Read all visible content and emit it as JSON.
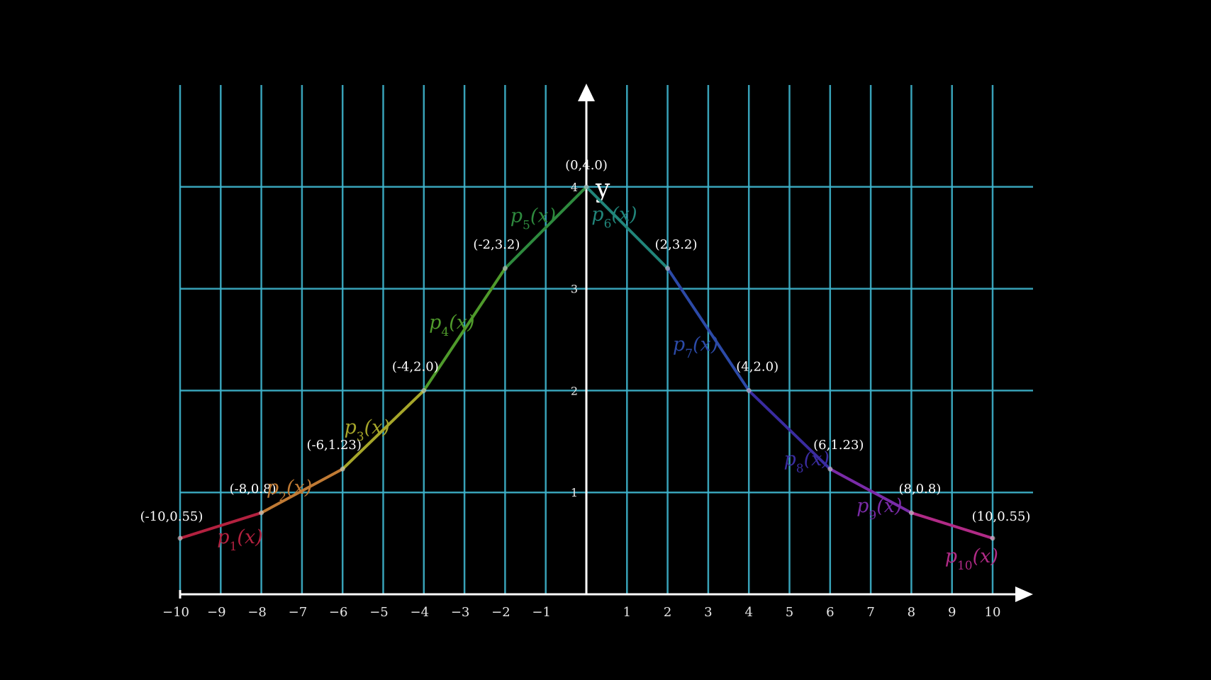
{
  "chart_data": {
    "type": "line",
    "title": "",
    "xlabel": "",
    "ylabel": "y",
    "xlim": [
      -10,
      10
    ],
    "ylim": [
      0,
      4
    ],
    "x_ticks": [
      "−10",
      "−9",
      "−8",
      "−7",
      "−6",
      "−5",
      "−4",
      "−3",
      "−2",
      "−1",
      "1",
      "2",
      "3",
      "4",
      "5",
      "6",
      "7",
      "8",
      "9",
      "10"
    ],
    "y_ticks": [
      "1",
      "2",
      "3",
      "4"
    ],
    "grid": true,
    "points": [
      {
        "x": -10,
        "y": 0.55,
        "label": "(-10,0.55)"
      },
      {
        "x": -8,
        "y": 0.8,
        "label": "(-8,0.8)"
      },
      {
        "x": -6,
        "y": 1.23,
        "label": "(-6,1.23)"
      },
      {
        "x": -4,
        "y": 2.0,
        "label": "(-4,2.0)"
      },
      {
        "x": -2,
        "y": 3.2,
        "label": "(-2,3.2)"
      },
      {
        "x": 0,
        "y": 4.0,
        "label": "(0,4.0)"
      },
      {
        "x": 2,
        "y": 3.2,
        "label": "(2,3.2)"
      },
      {
        "x": 4,
        "y": 2.0,
        "label": "(4,2.0)"
      },
      {
        "x": 6,
        "y": 1.23,
        "label": "(6,1.23)"
      },
      {
        "x": 8,
        "y": 0.8,
        "label": "(8,0.8)"
      },
      {
        "x": 10,
        "y": 0.55,
        "label": "(10,0.55)"
      }
    ],
    "series": [
      {
        "name": "p1(x)",
        "sub": "1",
        "color": "#b3213f",
        "x": [
          -10,
          -8
        ],
        "y": [
          0.55,
          0.8
        ]
      },
      {
        "name": "p2(x)",
        "sub": "2",
        "color": "#c07a34",
        "x": [
          -8,
          -6
        ],
        "y": [
          0.8,
          1.23
        ]
      },
      {
        "name": "p3(x)",
        "sub": "3",
        "color": "#a6a62a",
        "x": [
          -6,
          -4
        ],
        "y": [
          1.23,
          2.0
        ]
      },
      {
        "name": "p4(x)",
        "sub": "4",
        "color": "#4f9a2b",
        "x": [
          -4,
          -2
        ],
        "y": [
          2.0,
          3.2
        ]
      },
      {
        "name": "p5(x)",
        "sub": "5",
        "color": "#2e8a3e",
        "x": [
          -2,
          0
        ],
        "y": [
          3.2,
          4.0
        ]
      },
      {
        "name": "p6(x)",
        "sub": "6",
        "color": "#21857a",
        "x": [
          0,
          2
        ],
        "y": [
          4.0,
          3.2
        ]
      },
      {
        "name": "p7(x)",
        "sub": "7",
        "color": "#2c4aa8",
        "x": [
          2,
          4
        ],
        "y": [
          3.2,
          2.0
        ]
      },
      {
        "name": "p8(x)",
        "sub": "8",
        "color": "#3a2ca0",
        "x": [
          4,
          6
        ],
        "y": [
          2.0,
          1.23
        ]
      },
      {
        "name": "p9(x)",
        "sub": "9",
        "color": "#7a2ba8",
        "x": [
          6,
          8
        ],
        "y": [
          1.23,
          0.8
        ]
      },
      {
        "name": "p10(x)",
        "sub": "10",
        "color": "#b02a86",
        "x": [
          8,
          10
        ],
        "y": [
          0.8,
          0.55
        ]
      }
    ],
    "colors": {
      "grid": "#3fb4cc",
      "axes": "#ffffff",
      "background": "#000000"
    }
  }
}
